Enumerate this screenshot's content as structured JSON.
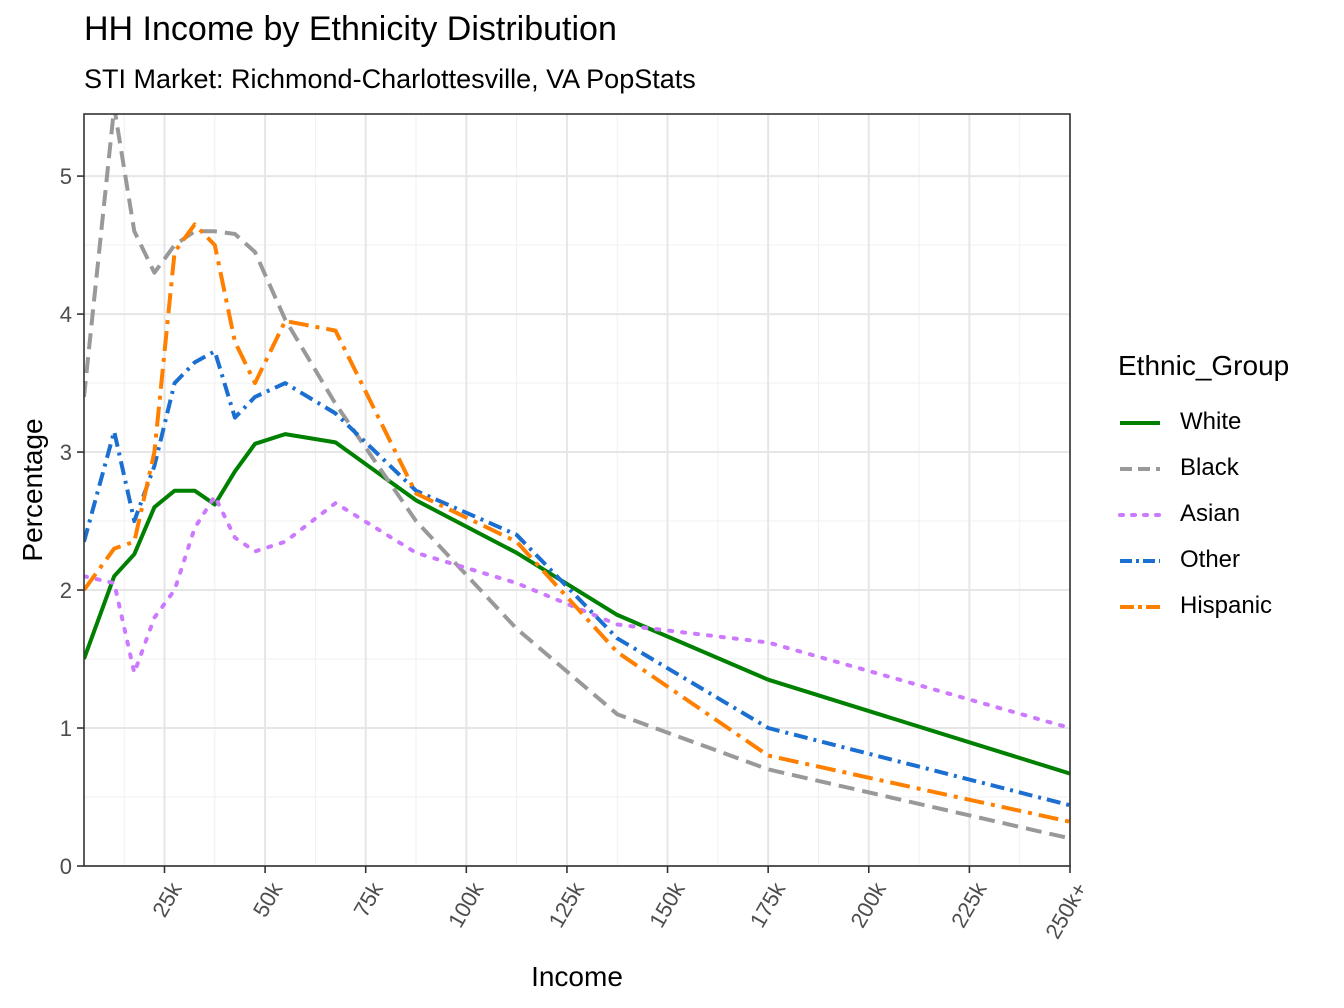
{
  "chart_data": {
    "type": "line",
    "title": "HH Income by Ethnicity Distribution",
    "subtitle": "STI Market: Richmond-Charlottesville, VA PopStats",
    "xlabel": "Income",
    "ylabel": "Percentage",
    "xlim": [
      5,
      250
    ],
    "ylim": [
      0,
      5.45
    ],
    "x_ticks": [
      25,
      50,
      75,
      100,
      125,
      150,
      175,
      200,
      225,
      250
    ],
    "x_tick_labels": [
      "25k",
      "50k",
      "75k",
      "100k",
      "125k",
      "150k",
      "175k",
      "200k",
      "225k",
      "250k+"
    ],
    "y_ticks": [
      0,
      1,
      2,
      3,
      4,
      5
    ],
    "y_tick_labels": [
      "0",
      "1",
      "2",
      "3",
      "4",
      "5"
    ],
    "grid": true,
    "legend_title": "Ethnic_Group",
    "legend_position": "right",
    "x": [
      5,
      12.5,
      17.5,
      22.5,
      27.5,
      32.5,
      37.5,
      42.5,
      47.5,
      55,
      67.5,
      87.5,
      112.5,
      137.5,
      175,
      250
    ],
    "series": [
      {
        "name": "White",
        "color": "#008000",
        "dash": "solid",
        "values": [
          1.5,
          2.1,
          2.26,
          2.6,
          2.72,
          2.72,
          2.62,
          2.86,
          3.06,
          3.13,
          3.07,
          2.65,
          2.27,
          1.82,
          1.35,
          0.67
        ]
      },
      {
        "name": "Black",
        "color": "#999999",
        "dash": "dash",
        "values": [
          3.4,
          5.5,
          4.6,
          4.3,
          4.5,
          4.6,
          4.6,
          4.58,
          4.45,
          3.96,
          3.35,
          2.5,
          1.72,
          1.1,
          0.7,
          0.2
        ]
      },
      {
        "name": "Asian",
        "color": "#cc79ff",
        "dash": "dot",
        "values": [
          2.1,
          2.05,
          1.4,
          1.8,
          2.0,
          2.45,
          2.68,
          2.38,
          2.28,
          2.35,
          2.63,
          2.27,
          2.05,
          1.75,
          1.62,
          1.0
        ]
      },
      {
        "name": "Other",
        "color": "#1b6fd0",
        "dash": "dashdot",
        "values": [
          2.35,
          3.15,
          2.5,
          2.9,
          3.5,
          3.65,
          3.73,
          3.25,
          3.4,
          3.5,
          3.28,
          2.72,
          2.4,
          1.65,
          1.0,
          0.44
        ]
      },
      {
        "name": "Hispanic",
        "color": "#ff8000",
        "dash": "longdashdot",
        "values": [
          2.0,
          2.3,
          2.35,
          3.0,
          4.45,
          4.65,
          4.5,
          3.8,
          3.5,
          3.95,
          3.88,
          2.7,
          2.35,
          1.55,
          0.8,
          0.32
        ]
      }
    ]
  }
}
